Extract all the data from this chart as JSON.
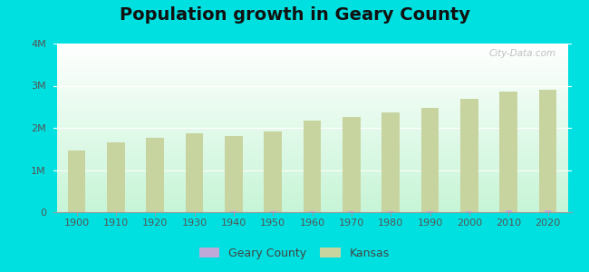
{
  "title": "Population growth in Geary County",
  "years": [
    1900,
    1910,
    1920,
    1930,
    1940,
    1950,
    1960,
    1970,
    1980,
    1990,
    2000,
    2010,
    2020
  ],
  "kansas_pop": [
    1470495,
    1654468,
    1769257,
    1880999,
    1801028,
    1905299,
    2178611,
    2249071,
    2363679,
    2477574,
    2688418,
    2853118,
    2913314
  ],
  "geary_pop": [
    5858,
    8886,
    9099,
    10597,
    13580,
    13027,
    28779,
    28111,
    29347,
    30453,
    27947,
    34362,
    40570
  ],
  "kansas_color": "#c8d4a0",
  "geary_color": "#c0a8d8",
  "outer_bg": "#00e0e0",
  "ylim": [
    0,
    4000000
  ],
  "yticks": [
    0,
    1000000,
    2000000,
    3000000,
    4000000
  ],
  "ytick_labels": [
    "0",
    "1M",
    "2M",
    "3M",
    "4M"
  ],
  "title_fontsize": 14,
  "watermark": "City-Data.com"
}
